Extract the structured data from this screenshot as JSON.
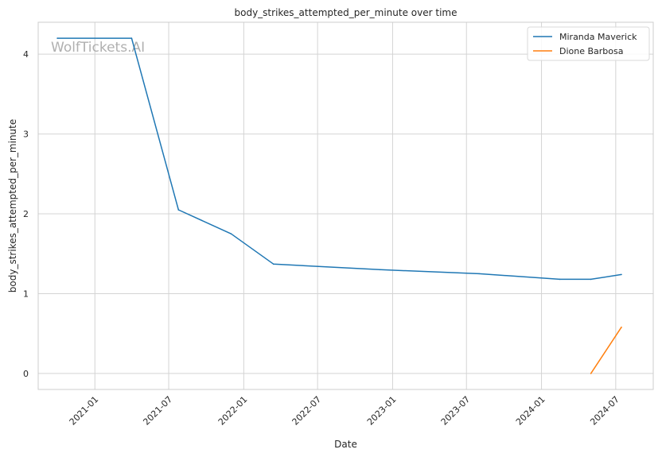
{
  "chart_data": {
    "type": "line",
    "title": "body_strikes_attempted_per_minute over time",
    "xlabel": "Date",
    "ylabel": "body_strikes_attempted_per_minute",
    "watermark": "WolfTickets.AI",
    "xlim": [
      "2020-08-15",
      "2024-10-01"
    ],
    "ylim": [
      -0.2,
      4.4
    ],
    "grid": true,
    "legend_position": "top-right",
    "x_ticks": [
      "2021-01-01",
      "2021-07-01",
      "2022-01-01",
      "2022-07-01",
      "2023-01-01",
      "2023-07-01",
      "2024-01-01",
      "2024-07-01"
    ],
    "x_tick_labels": [
      "2021-01",
      "2021-07",
      "2022-01",
      "2022-07",
      "2023-01",
      "2023-07",
      "2024-01",
      "2024-07"
    ],
    "y_ticks": [
      0,
      1,
      2,
      3,
      4
    ],
    "y_tick_labels": [
      "0",
      "1",
      "2",
      "3",
      "4"
    ],
    "series": [
      {
        "name": "Miranda Maverick",
        "color": "#1f77b4",
        "points": [
          {
            "x": "2020-10-01",
            "y": 4.2
          },
          {
            "x": "2021-04-01",
            "y": 4.2
          },
          {
            "x": "2021-07-25",
            "y": 2.05
          },
          {
            "x": "2021-12-01",
            "y": 1.75
          },
          {
            "x": "2022-03-15",
            "y": 1.37
          },
          {
            "x": "2022-12-01",
            "y": 1.3
          },
          {
            "x": "2023-08-01",
            "y": 1.25
          },
          {
            "x": "2024-02-15",
            "y": 1.18
          },
          {
            "x": "2024-05-01",
            "y": 1.18
          },
          {
            "x": "2024-07-15",
            "y": 1.24
          }
        ]
      },
      {
        "name": "Dione Barbosa",
        "color": "#ff7f0e",
        "points": [
          {
            "x": "2024-05-01",
            "y": 0.0
          },
          {
            "x": "2024-07-15",
            "y": 0.58
          }
        ]
      }
    ]
  }
}
